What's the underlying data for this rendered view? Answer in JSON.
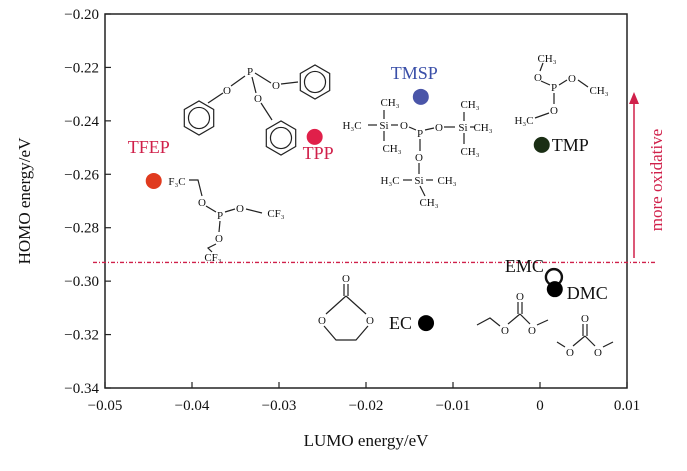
{
  "chart_data": {
    "type": "scatter",
    "xlabel": "LUMO energy/eV",
    "ylabel": "HOMO energy/eV",
    "xlim": [
      -0.05,
      0.01
    ],
    "ylim": [
      -0.34,
      -0.2
    ],
    "xticks": [
      "−0.05",
      "−0.04",
      "−0.03",
      "−0.02",
      "−0.01",
      "0",
      "0.01"
    ],
    "yticks": [
      "−0.20",
      "−0.22",
      "−0.24",
      "−0.26",
      "−0.28",
      "−0.30",
      "−0.32",
      "−0.34"
    ],
    "xtick_values": [
      -0.05,
      -0.04,
      -0.03,
      -0.02,
      -0.01,
      0,
      0.01
    ],
    "ytick_values": [
      -0.2,
      -0.22,
      -0.24,
      -0.26,
      -0.28,
      -0.3,
      -0.32,
      -0.34
    ],
    "grid": false,
    "points": [
      {
        "name": "TFEP",
        "x": -0.0444,
        "y": -0.2625,
        "color": "#e03a1e",
        "label_color": "#d0204a",
        "filled": true
      },
      {
        "name": "TPP",
        "x": -0.0259,
        "y": -0.246,
        "color": "#e0204a",
        "label_color": "#d0204a",
        "filled": true
      },
      {
        "name": "TMSP",
        "x": -0.0137,
        "y": -0.231,
        "color": "#4a55a8",
        "label_color": "#3a4fa8",
        "filled": true
      },
      {
        "name": "TMP",
        "x": 0.0002,
        "y": -0.249,
        "color": "#1a2e14",
        "label_color": "#111111",
        "filled": true
      },
      {
        "name": "EMC",
        "x": 0.0016,
        "y": -0.2985,
        "color": "#111111",
        "label_color": "#111111",
        "filled": false
      },
      {
        "name": "DMC",
        "x": 0.0017,
        "y": -0.303,
        "color": "#000000",
        "label_color": "#111111",
        "filled": true
      },
      {
        "name": "EC",
        "x": -0.0131,
        "y": -0.3157,
        "color": "#000000",
        "label_color": "#111111",
        "filled": true
      }
    ],
    "threshold_line": {
      "y": -0.293,
      "color": "#d0204a",
      "style": "dash-dot"
    },
    "annotation": {
      "text": "more oxidative",
      "color": "#d0204a",
      "direction": "up"
    },
    "structure_labels": {
      "tpp": [
        "P",
        "O",
        "O",
        "O"
      ],
      "tmsp": [
        "P",
        "O",
        "O",
        "O",
        "Si",
        "Si",
        "Si",
        "H₃C",
        "CH₃",
        "CH₃",
        "CH₃",
        "CH₃",
        "CH₃",
        "H₃C",
        "CH₃",
        "CH₃"
      ],
      "tmp": [
        "CH₃",
        "O",
        "P",
        "O",
        "CH₃",
        "O",
        "H₃C"
      ],
      "tfep": [
        "F₃C",
        "O",
        "P",
        "O",
        "CF₃",
        "O",
        "CF₃"
      ],
      "ec": [
        "O",
        "O",
        "O"
      ],
      "emc": [
        "O",
        "O",
        "O"
      ],
      "dmc": [
        "O",
        "O",
        "O"
      ]
    }
  }
}
